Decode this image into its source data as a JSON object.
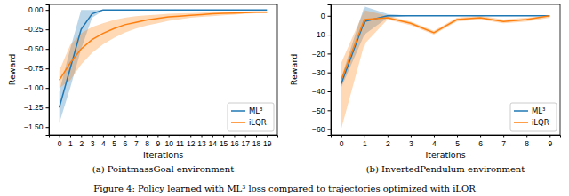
{
  "chart_data": [
    {
      "type": "line",
      "title": "(a) PointmassGoal environment",
      "x_label": "Iterations",
      "y_label": "Reward",
      "x": [
        0,
        1,
        2,
        3,
        4,
        5,
        6,
        7,
        8,
        9,
        10,
        11,
        12,
        13,
        14,
        15,
        16,
        17,
        18,
        19
      ],
      "series": [
        {
          "name": "ML³",
          "color": "#1f77b4",
          "values": [
            -1.25,
            -0.75,
            -0.25,
            -0.05,
            0,
            0,
            0,
            0,
            0,
            0,
            0,
            0,
            0,
            0,
            0,
            0,
            0,
            0,
            0,
            0
          ],
          "lower": [
            -1.45,
            -1.0,
            -0.5,
            -0.1,
            -0.01,
            0,
            0,
            0,
            0,
            0,
            0,
            0,
            0,
            0,
            0,
            0,
            0,
            0,
            0,
            0
          ],
          "upper": [
            -1.05,
            -0.5,
            0,
            0,
            0,
            0,
            0,
            0,
            0,
            0,
            0,
            0,
            0,
            0,
            0,
            0,
            0,
            0,
            0,
            0
          ]
        },
        {
          "name": "iLQR",
          "color": "#ff7f0e",
          "values": [
            -0.9,
            -0.68,
            -0.5,
            -0.38,
            -0.3,
            -0.24,
            -0.19,
            -0.16,
            -0.13,
            -0.11,
            -0.09,
            -0.08,
            -0.07,
            -0.06,
            -0.05,
            -0.045,
            -0.04,
            -0.035,
            -0.03,
            -0.03
          ],
          "lower": [
            -1.0,
            -0.9,
            -0.7,
            -0.55,
            -0.44,
            -0.36,
            -0.29,
            -0.24,
            -0.2,
            -0.17,
            -0.14,
            -0.12,
            -0.1,
            -0.09,
            -0.08,
            -0.07,
            -0.06,
            -0.05,
            -0.045,
            -0.04
          ],
          "upper": [
            -0.78,
            -0.45,
            -0.3,
            -0.22,
            -0.17,
            -0.13,
            -0.1,
            -0.08,
            -0.07,
            -0.06,
            -0.05,
            -0.045,
            -0.04,
            -0.035,
            -0.03,
            -0.025,
            -0.02,
            -0.02,
            -0.015,
            -0.015
          ]
        }
      ],
      "xlim": [
        -0.95,
        19.95
      ],
      "ylim": [
        -1.6,
        0.07
      ],
      "xticks": [
        0,
        1,
        2,
        3,
        4,
        5,
        6,
        7,
        8,
        9,
        10,
        11,
        12,
        13,
        14,
        15,
        16,
        17,
        18,
        19
      ],
      "yticks": [
        {
          "value": -1.5,
          "label": "−1.50"
        },
        {
          "value": -1.25,
          "label": "−1.25"
        },
        {
          "value": -1.0,
          "label": "−1.00"
        },
        {
          "value": -0.75,
          "label": "−0.75"
        },
        {
          "value": -0.5,
          "label": "−0.50"
        },
        {
          "value": -0.25,
          "label": "−0.25"
        },
        {
          "value": 0,
          "label": "0.00"
        }
      ],
      "legend": "lower right"
    },
    {
      "type": "line",
      "title": "(b) InvertedPendulum environment",
      "x_label": "Iterations",
      "y_label": "Reward",
      "x": [
        0,
        1,
        2,
        3,
        4,
        5,
        6,
        7,
        8,
        9
      ],
      "series": [
        {
          "name": "ML³",
          "color": "#1f77b4",
          "values": [
            -36,
            -3,
            0,
            0,
            0,
            0,
            0,
            0,
            0,
            0
          ],
          "lower": [
            -38,
            -10,
            -1,
            0,
            0,
            0,
            0,
            0,
            0,
            0
          ],
          "upper": [
            -33,
            5,
            1,
            0,
            0,
            0,
            0,
            0,
            0,
            0
          ]
        },
        {
          "name": "iLQR",
          "color": "#ff7f0e",
          "values": [
            -34,
            -2,
            -1,
            -4,
            -9,
            -2,
            -1,
            -3,
            -2,
            0
          ],
          "lower": [
            -60,
            -15,
            -2,
            -5,
            -10,
            -3,
            -2,
            -4,
            -3,
            -1
          ],
          "upper": [
            -25,
            3,
            0,
            -3,
            -8,
            -1,
            0,
            -2,
            -1,
            0
          ]
        }
      ],
      "xlim": [
        -0.45,
        9.45
      ],
      "ylim": [
        -63,
        6
      ],
      "xticks": [
        0,
        1,
        2,
        3,
        4,
        5,
        6,
        7,
        8,
        9
      ],
      "yticks": [
        {
          "value": -60,
          "label": "−60"
        },
        {
          "value": -50,
          "label": "−50"
        },
        {
          "value": -40,
          "label": "−40"
        },
        {
          "value": -30,
          "label": "−30"
        },
        {
          "value": -20,
          "label": "−20"
        },
        {
          "value": -10,
          "label": "−10"
        },
        0
      ],
      "legend": "lower right"
    }
  ],
  "figure_caption": "Figure 4: Policy learned with ML³ loss compared to trajectories optimized with iLQR"
}
